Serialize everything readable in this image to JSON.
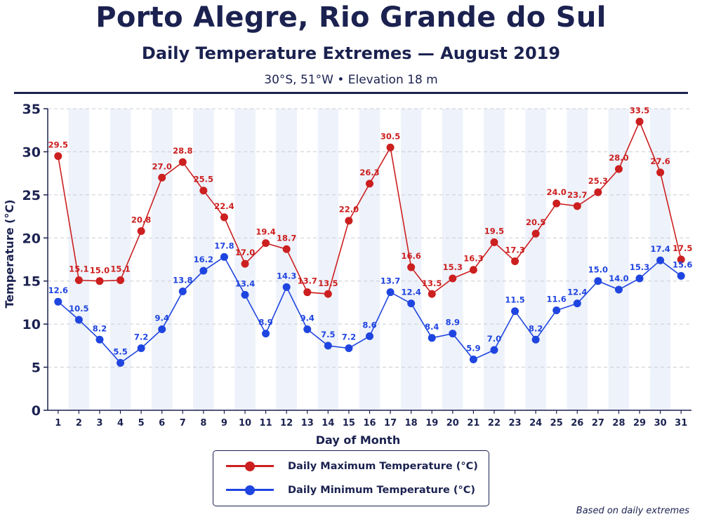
{
  "header": {
    "title": "Porto Alegre, Rio Grande do Sul",
    "subtitle": "Daily Temperature Extremes — August 2019",
    "caption": "30°S, 51°W • Elevation 18 m"
  },
  "footnote": "Based on daily extremes",
  "colors": {
    "max": "#cc1f1f",
    "min": "#1f45e0",
    "text": "#1b2250",
    "band": "#eef2fa",
    "grid": "#c9ccd6"
  },
  "chart_data": {
    "type": "line",
    "xlabel": "Day of Month",
    "ylabel": "Temperature (°C)",
    "ylim": [
      0,
      35
    ],
    "yticks": [
      0,
      5,
      10,
      15,
      20,
      25,
      30,
      35
    ],
    "grid": "horizontal dashed",
    "legend_position": "bottom-center",
    "x": [
      1,
      2,
      3,
      4,
      5,
      6,
      7,
      8,
      9,
      10,
      11,
      12,
      13,
      14,
      15,
      16,
      17,
      18,
      19,
      20,
      21,
      22,
      23,
      24,
      25,
      26,
      27,
      28,
      29,
      30,
      31
    ],
    "series": [
      {
        "name": "Daily Maximum Temperature (°C)",
        "key": "max",
        "values": [
          29.5,
          15.1,
          15.0,
          15.1,
          20.8,
          27.0,
          28.8,
          25.5,
          22.4,
          17.0,
          19.4,
          18.7,
          13.7,
          13.5,
          22.0,
          26.3,
          30.5,
          16.6,
          13.5,
          15.3,
          16.3,
          19.5,
          17.3,
          20.5,
          24.0,
          23.7,
          25.3,
          28.0,
          33.5,
          27.6,
          17.5
        ]
      },
      {
        "name": "Daily Minimum Temperature (°C)",
        "key": "min",
        "values": [
          12.6,
          10.5,
          8.2,
          5.5,
          7.2,
          9.4,
          13.8,
          16.2,
          17.8,
          13.4,
          8.9,
          14.3,
          9.4,
          7.5,
          7.2,
          8.6,
          13.7,
          12.4,
          8.4,
          8.9,
          5.9,
          7.0,
          11.5,
          8.2,
          11.6,
          12.4,
          15.0,
          14.0,
          15.3,
          17.4,
          15.6
        ]
      }
    ]
  }
}
